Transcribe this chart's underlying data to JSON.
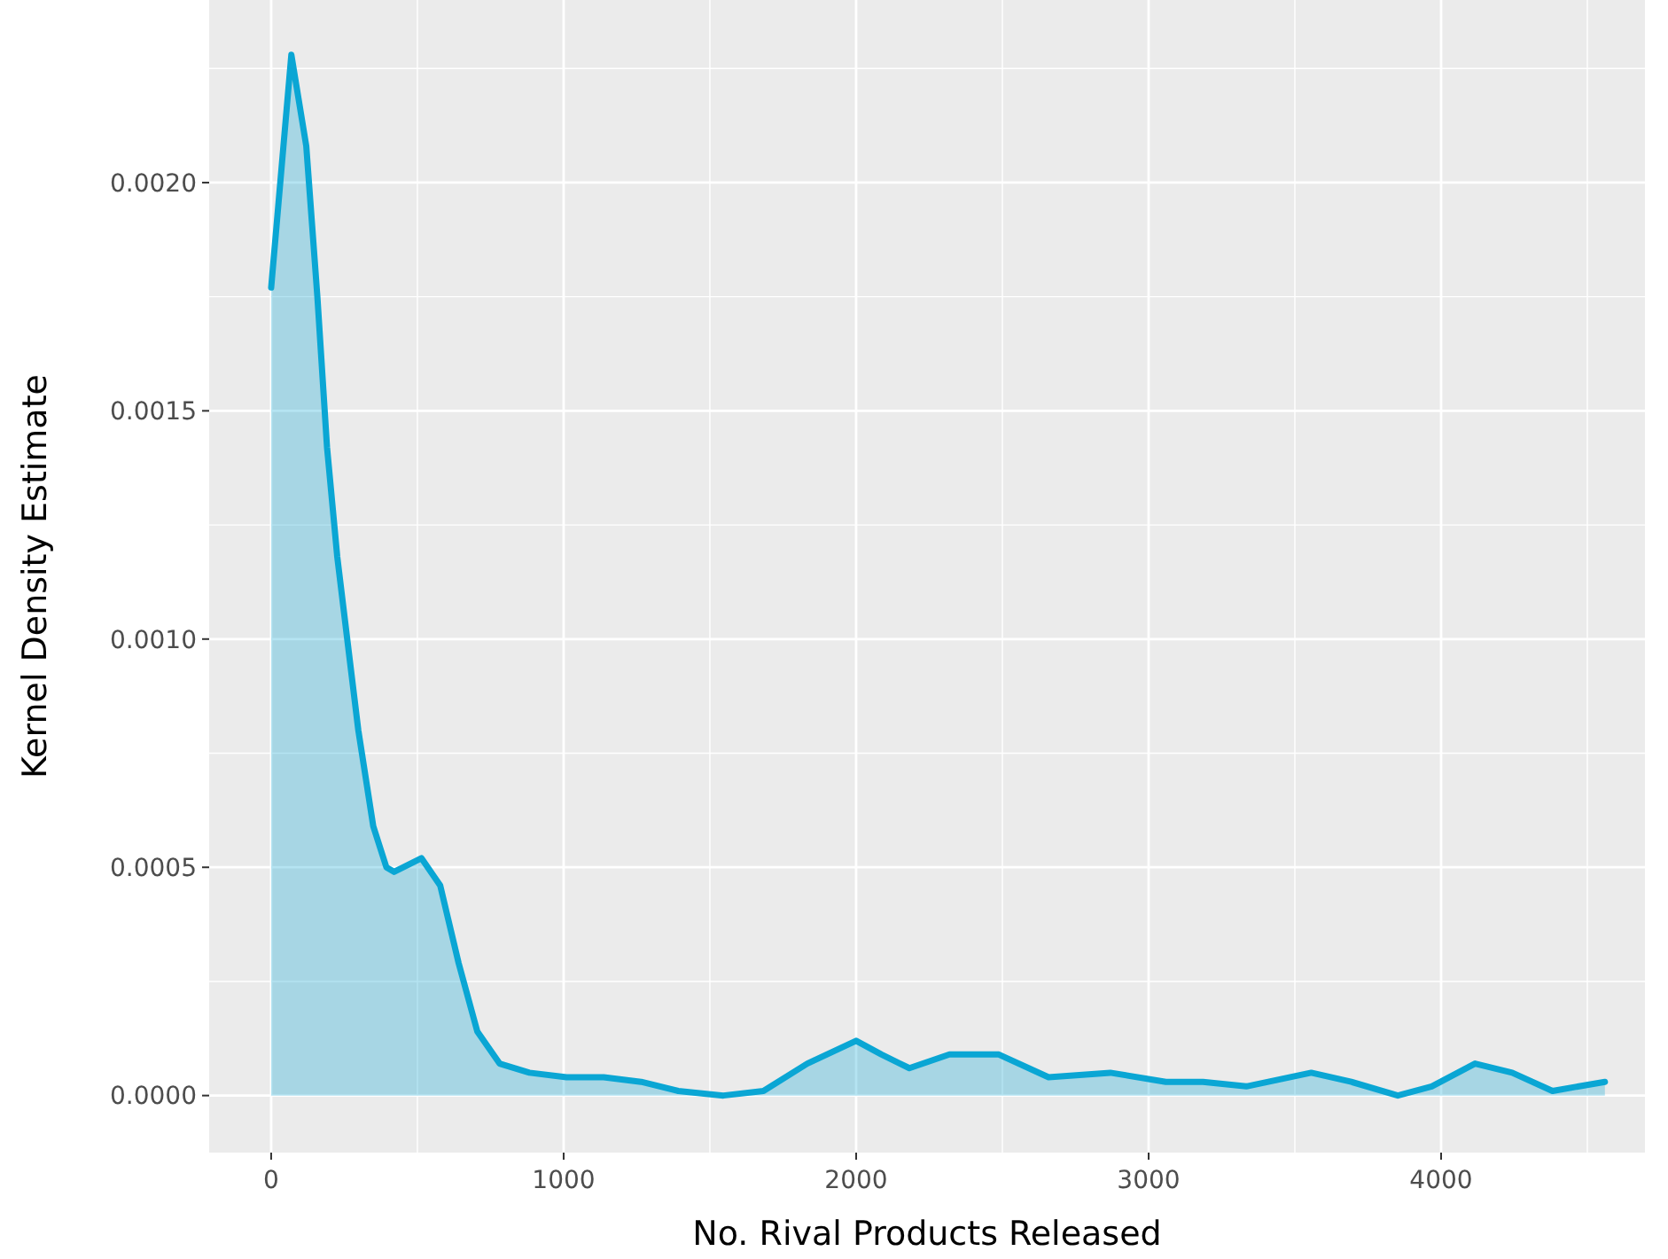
{
  "chart_data": {
    "type": "area",
    "xlabel": "No. Rival Products Released",
    "ylabel": "Kernel Density Estimate",
    "x": [
      0,
      69,
      120,
      158,
      191,
      226,
      260,
      298,
      349,
      394,
      420,
      514,
      578,
      641,
      705,
      781,
      883,
      1010,
      1137,
      1265,
      1392,
      1546,
      1683,
      1833,
      2000,
      2087,
      2182,
      2319,
      2488,
      2658,
      2869,
      3059,
      3186,
      3334,
      3556,
      3693,
      3852,
      3968,
      4116,
      4243,
      4381,
      4560
    ],
    "series": [
      {
        "color": "#0aa6d4",
        "values": [
          0.00177,
          0.00228,
          0.00208,
          0.00175,
          0.00142,
          0.00118,
          0.001,
          0.0008,
          0.00059,
          0.0005,
          0.00049,
          0.00052,
          0.00046,
          0.00029,
          0.00014,
          7e-05,
          5e-05,
          4e-05,
          4e-05,
          3e-05,
          1e-05,
          0.0,
          1e-05,
          7e-05,
          0.00012,
          9e-05,
          6e-05,
          9e-05,
          9e-05,
          4e-05,
          5e-05,
          3e-05,
          3e-05,
          2e-05,
          5e-05,
          3e-05,
          0.0,
          2e-05,
          7e-05,
          5e-05,
          1e-05,
          3e-05
        ]
      }
    ],
    "xlim": [
      -212,
      4697
    ],
    "ylim": [
      -0.000125,
      0.0024
    ],
    "xticks": [
      0,
      {
        "value": 500,
        "label": null
      },
      1000,
      {
        "value": 1500,
        "label": null
      },
      2000,
      {
        "value": 2500,
        "label": null
      },
      3000,
      {
        "value": 3500,
        "label": null
      },
      4000,
      {
        "value": 4500,
        "label": null
      }
    ],
    "yticks": [
      "0.0000",
      {
        "value": 0.00025,
        "label": null
      },
      {
        "value": 0.0005,
        "label": "0.0005"
      },
      {
        "value": 0.00075,
        "label": null
      },
      {
        "value": 0.001,
        "label": "0.0010"
      },
      {
        "value": 0.00125,
        "label": null
      },
      {
        "value": 0.0015,
        "label": "0.0015"
      },
      {
        "value": 0.00175,
        "label": null
      },
      {
        "value": 0.002,
        "label": "0.0020"
      },
      {
        "value": 0.00225,
        "label": null
      }
    ],
    "grid": true
  }
}
